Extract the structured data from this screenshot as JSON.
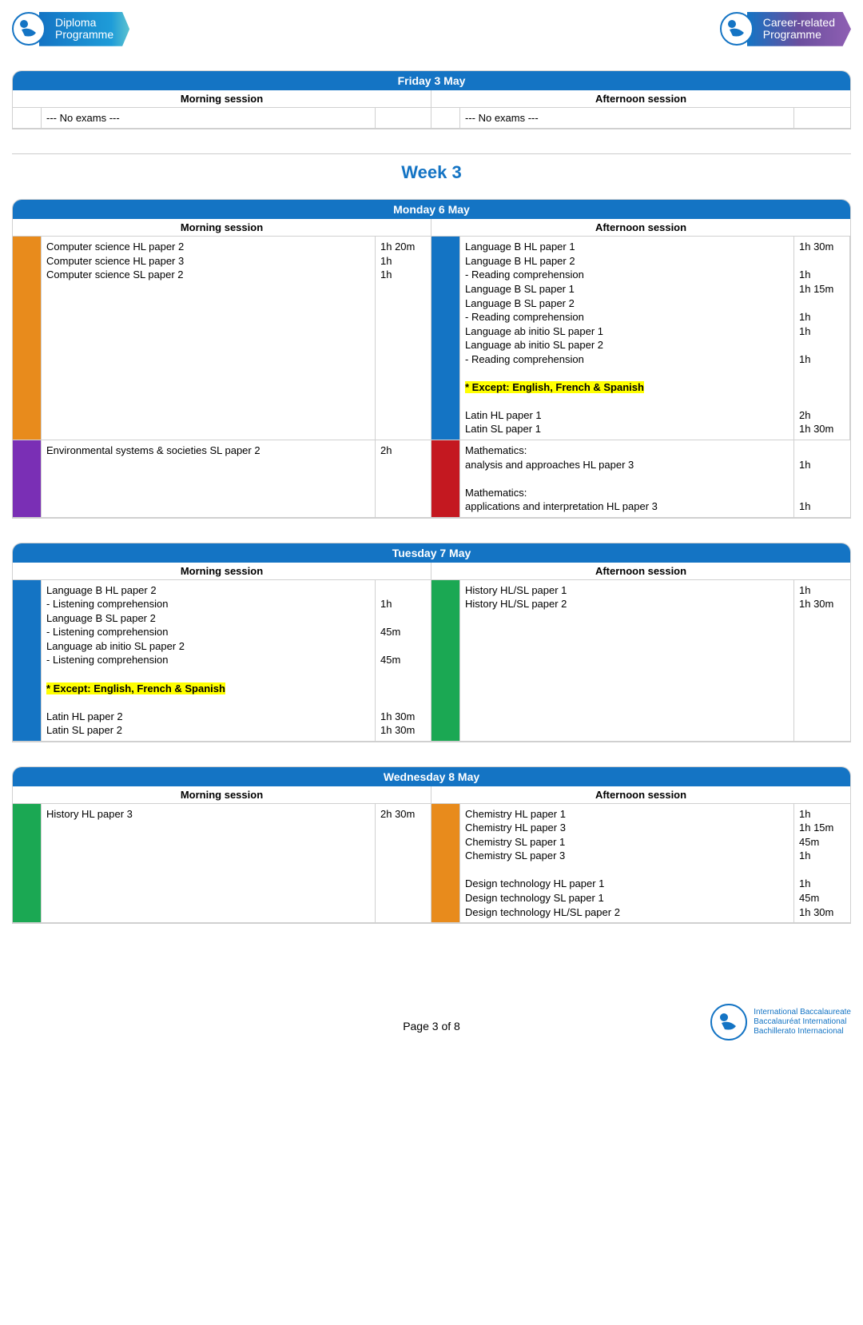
{
  "colors": {
    "blue": "#1474c4",
    "orange": "#e88b1c",
    "purple": "#7a2fb5",
    "red": "#c41820",
    "green": "#1ba853",
    "highlight": "#ffff00",
    "border": "#d0d0d0"
  },
  "logos": {
    "left": {
      "line1": "Diploma",
      "line2": "Programme"
    },
    "right": {
      "line1": "Career-related",
      "line2": "Programme"
    }
  },
  "week_title": "Week 3",
  "session_labels": {
    "morning": "Morning session",
    "afternoon": "Afternoon session"
  },
  "days": [
    {
      "title": "Friday 3 May",
      "rows": [
        {
          "morning": {
            "color": null,
            "lines": [
              {
                "text": "--- No exams ---",
                "dur": ""
              }
            ]
          },
          "afternoon": {
            "color": null,
            "lines": [
              {
                "text": "--- No exams ---",
                "dur": ""
              }
            ]
          }
        }
      ]
    },
    {
      "title": "Monday 6 May",
      "rows": [
        {
          "morning": {
            "color": "#e88b1c",
            "lines": [
              {
                "text": "Computer science HL paper 2",
                "dur": "1h 20m"
              },
              {
                "text": "Computer science HL paper 3",
                "dur": "1h"
              },
              {
                "text": "Computer science SL paper 2",
                "dur": "1h"
              }
            ]
          },
          "afternoon": {
            "color": "#1474c4",
            "lines": [
              {
                "text": "Language B HL paper 1",
                "dur": "1h 30m"
              },
              {
                "text": "Language B HL paper 2",
                "dur": ""
              },
              {
                "text": "- Reading comprehension",
                "dur": "1h"
              },
              {
                "text": "Language B SL paper 1",
                "dur": "1h 15m"
              },
              {
                "text": "Language B SL paper 2",
                "dur": ""
              },
              {
                "text": "- Reading comprehension",
                "dur": "1h"
              },
              {
                "text": "Language ab initio SL paper 1",
                "dur": "1h"
              },
              {
                "text": "Language ab initio SL paper 2",
                "dur": ""
              },
              {
                "text": "- Reading comprehension",
                "dur": "1h"
              },
              {
                "text": "",
                "dur": ""
              },
              {
                "text": "* Except: English, French & Spanish",
                "dur": "",
                "highlight": true
              },
              {
                "text": "",
                "dur": ""
              },
              {
                "text": "Latin HL paper 1",
                "dur": "2h"
              },
              {
                "text": "Latin SL paper 1",
                "dur": "1h 30m"
              }
            ]
          }
        },
        {
          "morning": {
            "color": "#7a2fb5",
            "lines": [
              {
                "text": "Environmental systems & societies SL paper 2",
                "dur": "2h"
              }
            ]
          },
          "afternoon": {
            "color": "#c41820",
            "lines": [
              {
                "text": "Mathematics:",
                "dur": ""
              },
              {
                "text": "analysis and approaches HL paper 3",
                "dur": "1h"
              },
              {
                "text": "",
                "dur": ""
              },
              {
                "text": "Mathematics:",
                "dur": ""
              },
              {
                "text": "applications and interpretation HL paper 3",
                "dur": "1h"
              }
            ]
          }
        }
      ]
    },
    {
      "title": "Tuesday 7 May",
      "rows": [
        {
          "morning": {
            "color": "#1474c4",
            "lines": [
              {
                "text": "Language B HL paper 2",
                "dur": ""
              },
              {
                "text": "- Listening comprehension",
                "dur": "1h"
              },
              {
                "text": "Language B SL paper 2",
                "dur": ""
              },
              {
                "text": "- Listening comprehension",
                "dur": "45m"
              },
              {
                "text": "Language ab initio SL paper 2",
                "dur": ""
              },
              {
                "text": "- Listening comprehension",
                "dur": "45m"
              },
              {
                "text": "",
                "dur": ""
              },
              {
                "text": "* Except: English, French & Spanish",
                "dur": "",
                "highlight": true
              },
              {
                "text": "",
                "dur": ""
              },
              {
                "text": "Latin HL paper 2",
                "dur": "1h 30m"
              },
              {
                "text": "Latin SL paper 2",
                "dur": "1h 30m"
              }
            ]
          },
          "afternoon": {
            "color": "#1ba853",
            "lines": [
              {
                "text": "History HL/SL paper 1",
                "dur": "1h"
              },
              {
                "text": "History HL/SL paper 2",
                "dur": "1h 30m"
              }
            ]
          }
        }
      ]
    },
    {
      "title": "Wednesday 8 May",
      "rows": [
        {
          "morning": {
            "color": "#1ba853",
            "lines": [
              {
                "text": "History HL paper 3",
                "dur": "2h 30m"
              }
            ]
          },
          "afternoon": {
            "color": "#e88b1c",
            "lines": [
              {
                "text": "Chemistry HL paper 1",
                "dur": "1h"
              },
              {
                "text": "Chemistry HL paper 3",
                "dur": "1h 15m"
              },
              {
                "text": "Chemistry SL paper 1",
                "dur": "45m"
              },
              {
                "text": "Chemistry SL paper 3",
                "dur": "1h"
              },
              {
                "text": "",
                "dur": ""
              },
              {
                "text": "Design technology HL paper 1",
                "dur": "1h"
              },
              {
                "text": "Design technology SL paper 1",
                "dur": "45m"
              },
              {
                "text": "Design technology HL/SL paper 2",
                "dur": "1h 30m"
              }
            ]
          }
        }
      ]
    }
  ],
  "footer": {
    "page": "Page 3 of 8",
    "org": {
      "line1": "International Baccalaureate",
      "line2": "Baccalauréat International",
      "line3": "Bachillerato Internacional"
    }
  }
}
